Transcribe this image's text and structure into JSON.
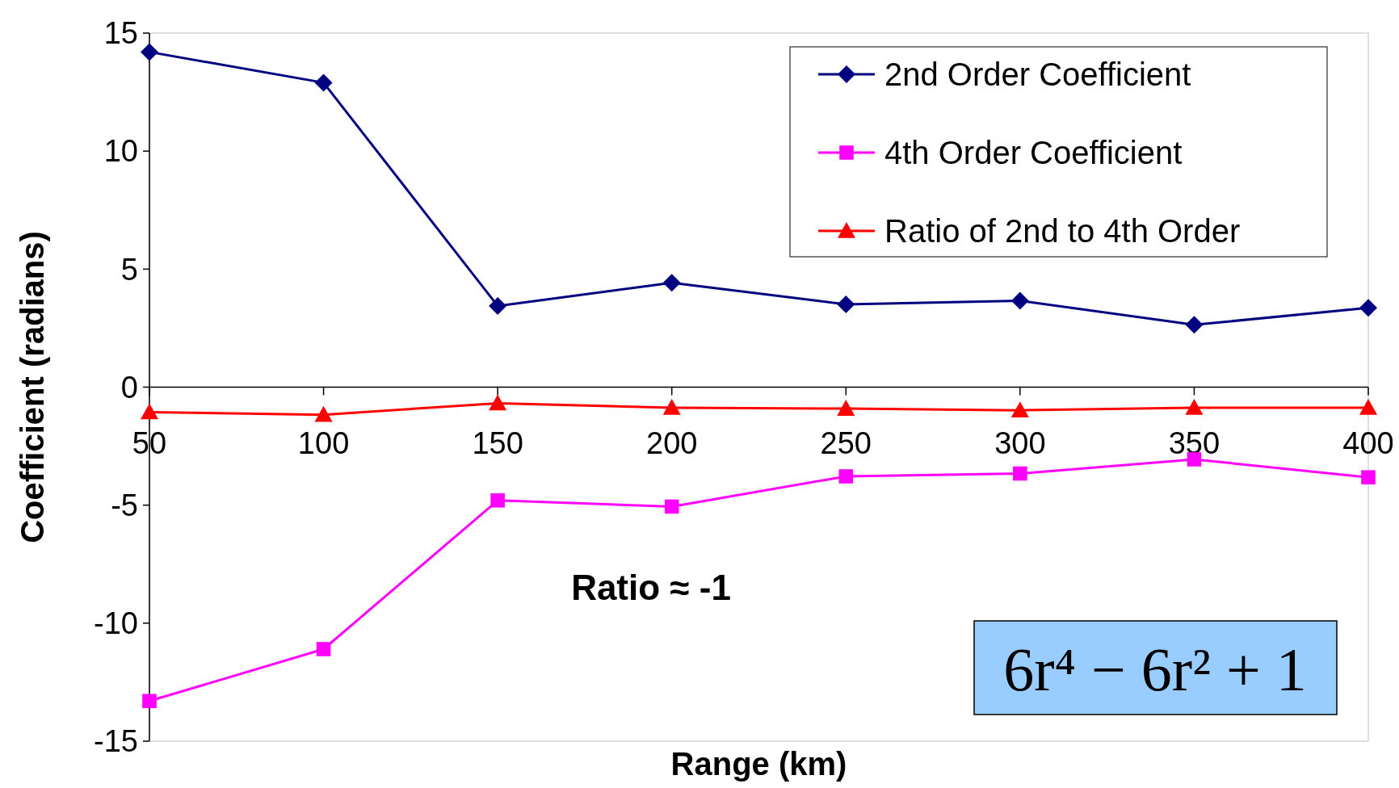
{
  "chart_data": {
    "type": "line",
    "xlabel": "Range (km)",
    "ylabel": "Coefficient (radians)",
    "x": [
      50,
      100,
      150,
      200,
      250,
      300,
      350,
      400
    ],
    "series": [
      {
        "name": "2nd Order Coefficient",
        "color": "#000080",
        "marker": "diamond",
        "values": [
          14.2,
          12.9,
          3.44,
          4.42,
          3.51,
          3.66,
          2.64,
          3.36
        ]
      },
      {
        "name": "4th Order Coefficient",
        "color": "#ff00ff",
        "marker": "square",
        "values": [
          -13.3,
          -11.1,
          -4.8,
          -5.06,
          -3.78,
          -3.66,
          -3.06,
          -3.82
        ]
      },
      {
        "name": "Ratio of 2nd to 4th Order",
        "color": "#ff0000",
        "marker": "triangle",
        "values": [
          -1.06,
          -1.17,
          -0.68,
          -0.87,
          -0.91,
          -0.98,
          -0.87,
          -0.87
        ]
      }
    ],
    "xlim": [
      50,
      400
    ],
    "xticks": [
      50,
      100,
      150,
      200,
      250,
      300,
      350,
      400
    ],
    "ylim": [
      -15,
      15
    ],
    "yticks": [
      -15,
      -10,
      -5,
      0,
      5,
      10,
      15
    ],
    "grid": false,
    "legend": "top right",
    "annotations": [
      "Ratio ≈ -1",
      "6r⁴ − 6r² + 1"
    ]
  }
}
